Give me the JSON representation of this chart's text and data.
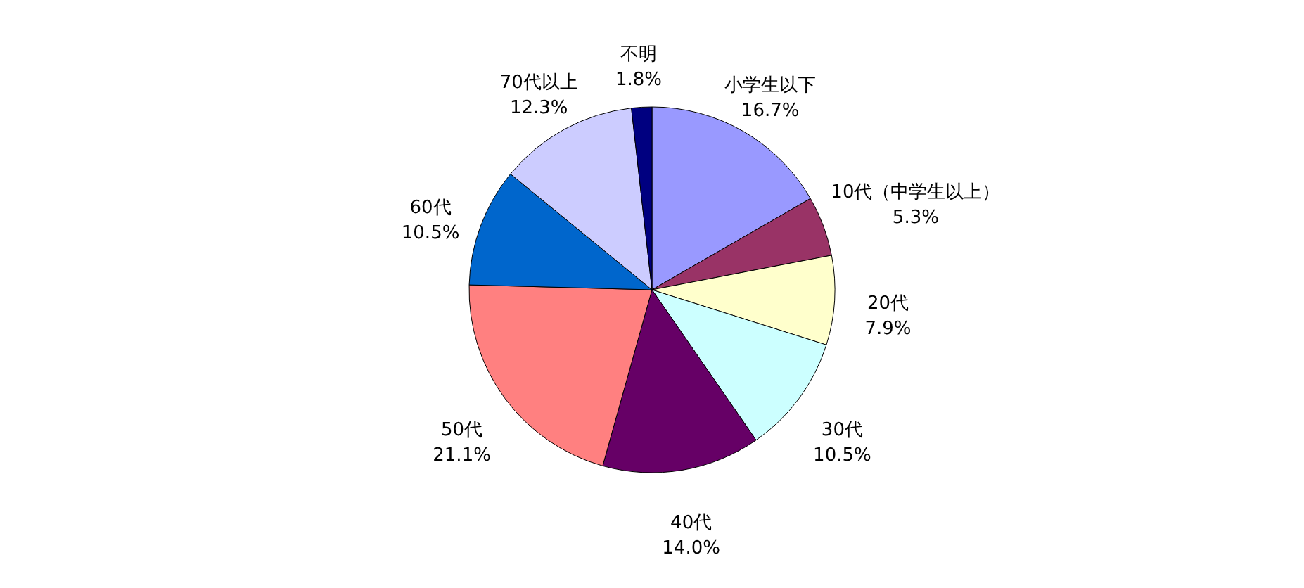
{
  "chart_data": {
    "type": "pie",
    "categories": [
      "小学生以下",
      "10代（中学生以上）",
      "20代",
      "30代",
      "40代",
      "50代",
      "60代",
      "70代以上",
      "不明"
    ],
    "values": [
      16.7,
      5.3,
      7.9,
      10.5,
      14.0,
      21.1,
      10.5,
      12.3,
      1.8
    ],
    "value_labels": [
      "16.7%",
      "5.3%",
      "7.9%",
      "10.5%",
      "14.0%",
      "21.1%",
      "10.5%",
      "12.3%",
      "1.8%"
    ],
    "colors": [
      "#9999ff",
      "#993366",
      "#ffffcc",
      "#ccffff",
      "#660066",
      "#ff8080",
      "#0066cc",
      "#ccccff",
      "#000080"
    ]
  }
}
